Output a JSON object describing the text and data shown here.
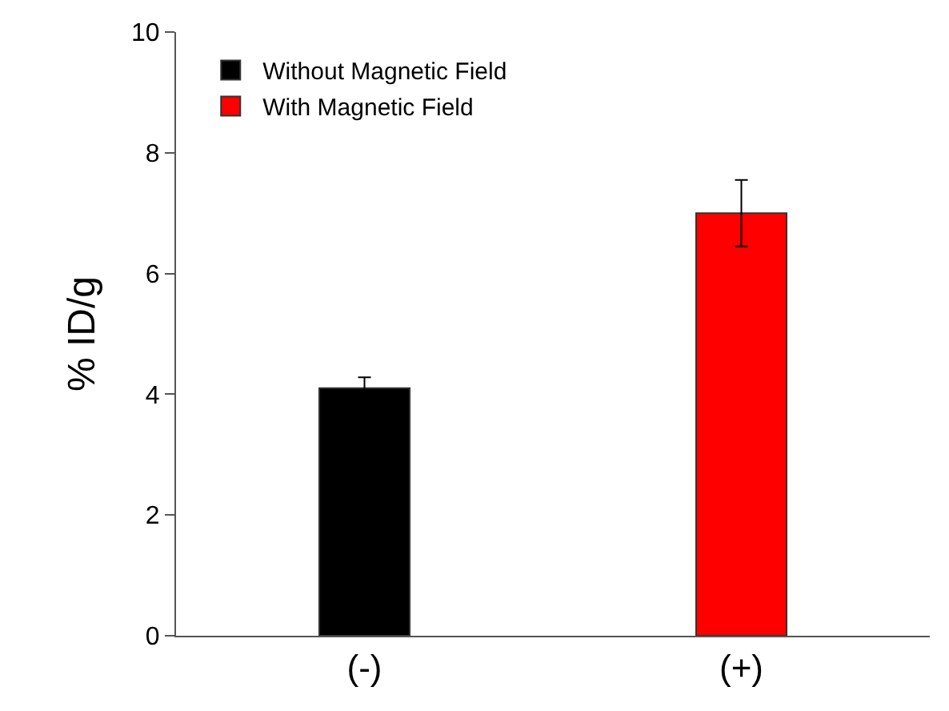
{
  "chart_data": {
    "type": "bar",
    "ylabel": "% ID/g",
    "categories": [
      "(-)",
      "(+)"
    ],
    "series": [
      {
        "name": "Without Magnetic Field",
        "color": "#000000",
        "values": [
          4.1,
          null
        ],
        "errors": [
          0.18,
          null
        ]
      },
      {
        "name": "With Magnetic Field",
        "color": "#ff0000",
        "values": [
          null,
          7.0
        ],
        "errors": [
          null,
          0.55
        ]
      }
    ],
    "ylim": [
      0,
      10
    ],
    "yticks": [
      0,
      2,
      4,
      6,
      8,
      10
    ],
    "legend": "top left"
  }
}
